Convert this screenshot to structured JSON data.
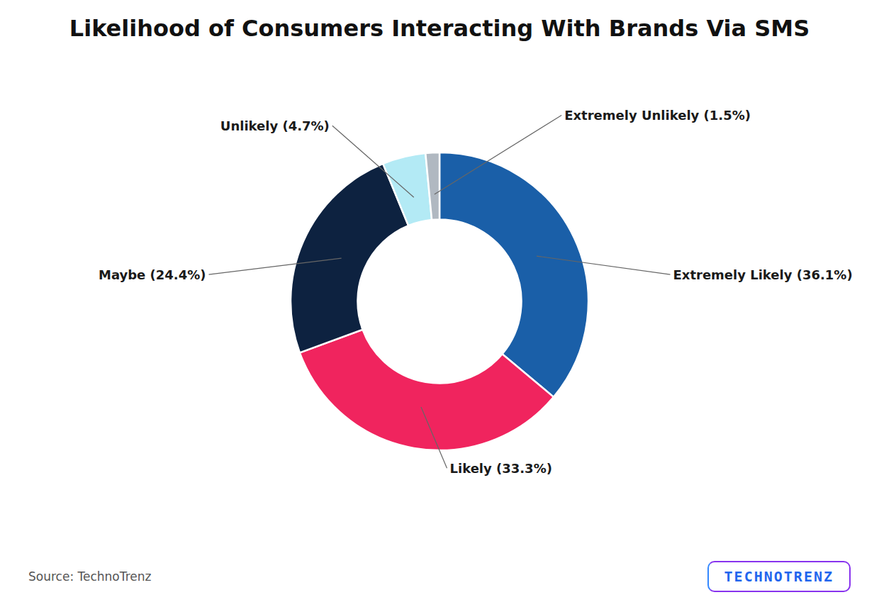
{
  "chart_data": {
    "type": "pie",
    "title": "Likelihood of Consumers Interacting With Brands Via SMS",
    "categories": [
      "Extremely Likely",
      "Likely",
      "Maybe",
      "Unlikely",
      "Extremely Unlikely"
    ],
    "values": [
      36.1,
      33.3,
      24.4,
      4.7,
      1.5
    ],
    "value_labels": [
      "Extremely Likely (36.1%)",
      "Likely (33.3%)",
      "Maybe (24.4%)",
      "Unlikely (4.7%)",
      "Extremely Unlikely (1.5%)"
    ],
    "colors": [
      "#1a5fa8",
      "#f0245e",
      "#0d2240",
      "#b3eaf5",
      "#b0b8c1"
    ],
    "data_labels": true,
    "annotations": [
      "Source: TechnoTrenz",
      "TECHNOTRENZ"
    ]
  }
}
